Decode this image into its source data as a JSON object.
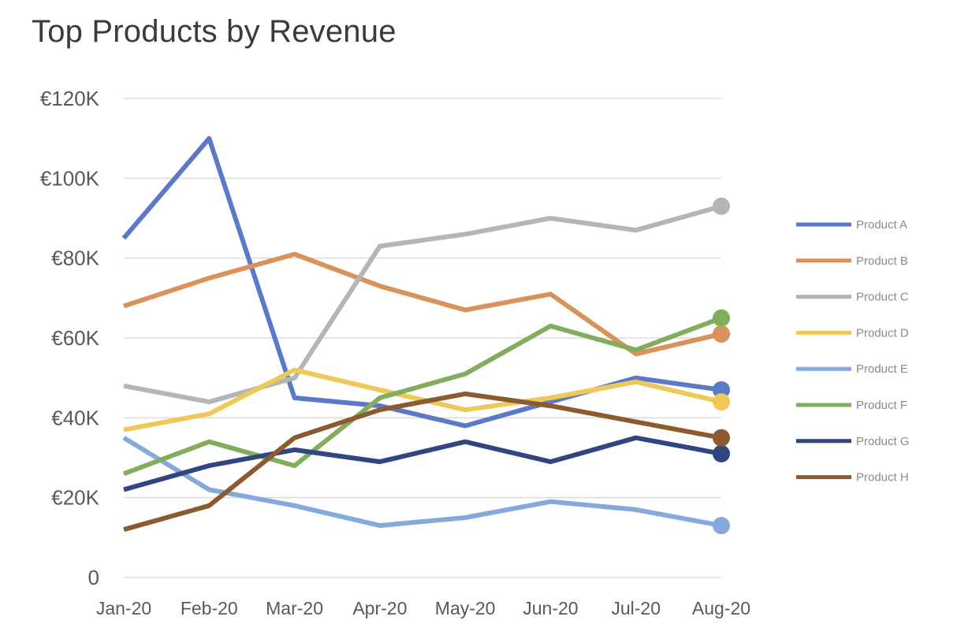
{
  "chart_data": {
    "type": "line",
    "title": "Top Products by Revenue",
    "xlabel": "",
    "ylabel": "",
    "categories": [
      "Jan-20",
      "Feb-20",
      "Mar-20",
      "Apr-20",
      "May-20",
      "Jun-20",
      "Jul-20",
      "Aug-20"
    ],
    "ylim": [
      0,
      120000
    ],
    "yticks": [
      0,
      20000,
      40000,
      60000,
      80000,
      100000,
      120000
    ],
    "ytick_labels": [
      "0",
      "€20K",
      "€40K",
      "€60K",
      "€80K",
      "€100K",
      "€120K"
    ],
    "grid": true,
    "legend_position": "right",
    "end_markers": true,
    "series": [
      {
        "name": "Product A",
        "color": "#5b79c7",
        "values": [
          85000,
          110000,
          45000,
          43000,
          38000,
          44000,
          50000,
          47000
        ]
      },
      {
        "name": "Product B",
        "color": "#d9925c",
        "values": [
          68000,
          75000,
          81000,
          73000,
          67000,
          71000,
          56000,
          61000
        ]
      },
      {
        "name": "Product C",
        "color": "#b5b5b5",
        "values": [
          48000,
          44000,
          50000,
          83000,
          86000,
          90000,
          87000,
          93000
        ]
      },
      {
        "name": "Product D",
        "color": "#efc85a",
        "values": [
          37000,
          41000,
          52000,
          47000,
          42000,
          45000,
          49000,
          44000
        ]
      },
      {
        "name": "Product E",
        "color": "#86a9db",
        "values": [
          35000,
          22000,
          18000,
          13000,
          15000,
          19000,
          17000,
          13000
        ]
      },
      {
        "name": "Product F",
        "color": "#82ad5d",
        "values": [
          26000,
          34000,
          28000,
          45000,
          51000,
          63000,
          57000,
          65000
        ]
      },
      {
        "name": "Product G",
        "color": "#2f4680",
        "values": [
          22000,
          28000,
          32000,
          29000,
          34000,
          29000,
          35000,
          31000
        ]
      },
      {
        "name": "Product H",
        "color": "#8c5a2f",
        "values": [
          12000,
          18000,
          35000,
          42000,
          46000,
          43000,
          39000,
          35000
        ]
      }
    ]
  }
}
